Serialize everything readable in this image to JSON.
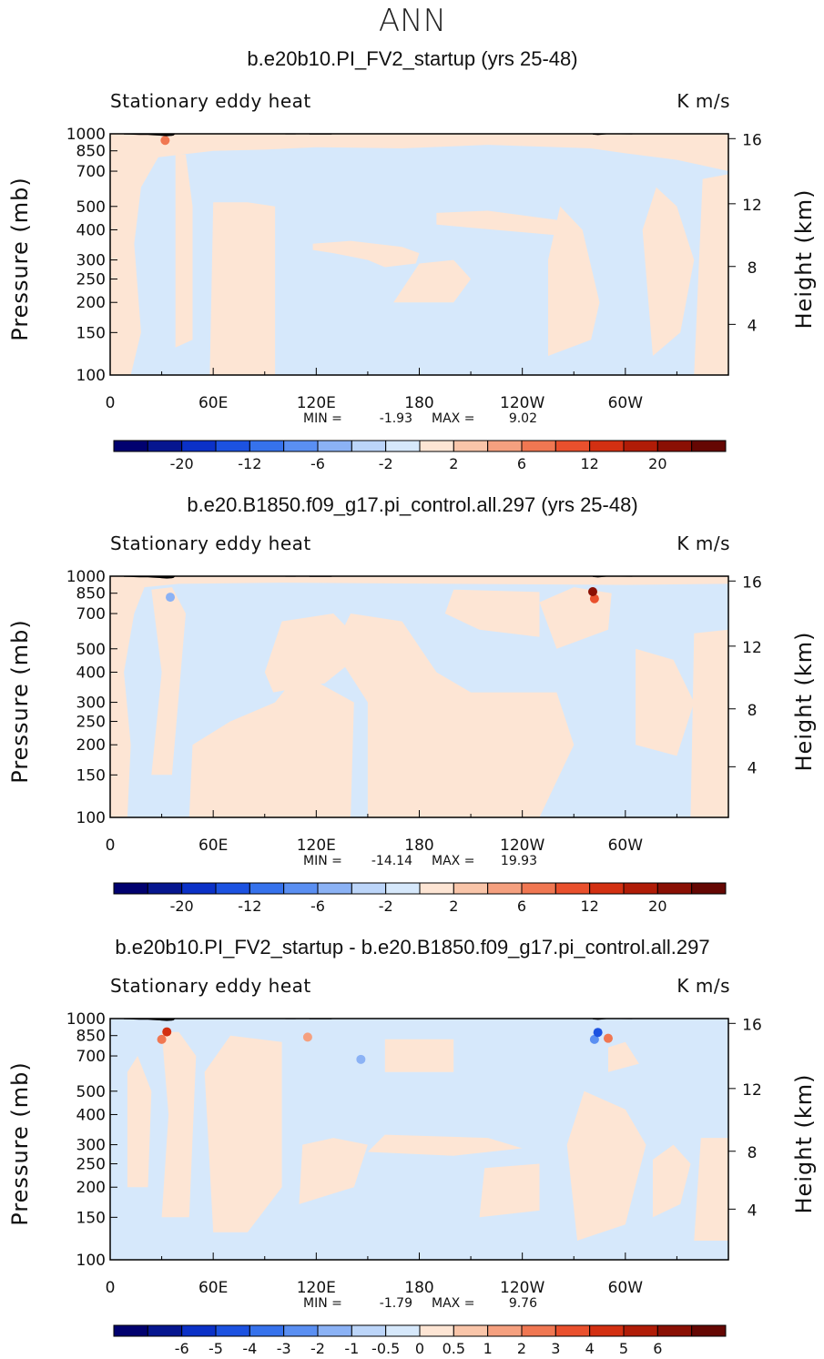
{
  "figure": {
    "title": "ANN"
  },
  "colors": {
    "neg_fill": "#d6e8fb",
    "pos_fill": "#fde5d4",
    "topography": "#000000",
    "palette": [
      "#01016f",
      "#06168f",
      "#0b31c7",
      "#1c52e1",
      "#3672ec",
      "#5a8ff2",
      "#8bb2f5",
      "#bcd5f9",
      "#d6e8fb",
      "#fde5d4",
      "#f9c5a9",
      "#f5a07f",
      "#f07752",
      "#e9502d",
      "#d33012",
      "#b01c07",
      "#8a1004",
      "#650703"
    ]
  },
  "chart_data": [
    {
      "type": "heatmap",
      "title": "b.e20b10.PI_FV2_startup (yrs 25-48)",
      "left_subtitle": "Stationary eddy heat",
      "right_subtitle": "K m/s",
      "ylabel": "Pressure (mb)",
      "y2label": "Height (km)",
      "x_ticks": [
        "0",
        "60E",
        "120E",
        "180",
        "120W",
        "60W"
      ],
      "y_ticks": [
        "100",
        "150",
        "200",
        "250",
        "300",
        "400",
        "500",
        "700",
        "850",
        "1000"
      ],
      "y2_ticks": [
        "16",
        "12",
        "8",
        "4"
      ],
      "min_label": "MIN =",
      "min_value": "-1.93",
      "max_label": "MAX =",
      "max_value": "9.02",
      "colorbar_labels": [
        "-20",
        "-12",
        "-6",
        "-2",
        "2",
        "6",
        "12",
        "20"
      ],
      "xlim": [
        0,
        360
      ],
      "ylim": [
        1000,
        100
      ]
    },
    {
      "type": "heatmap",
      "title": "b.e20.B1850.f09_g17.pi_control.all.297 (yrs 25-48)",
      "left_subtitle": "Stationary eddy heat",
      "right_subtitle": "K m/s",
      "ylabel": "Pressure (mb)",
      "y2label": "Height (km)",
      "x_ticks": [
        "0",
        "60E",
        "120E",
        "180",
        "120W",
        "60W"
      ],
      "y_ticks": [
        "100",
        "150",
        "200",
        "250",
        "300",
        "400",
        "500",
        "700",
        "850",
        "1000"
      ],
      "y2_ticks": [
        "16",
        "12",
        "8",
        "4"
      ],
      "min_label": "MIN =",
      "min_value": "-14.14",
      "max_label": "MAX =",
      "max_value": "19.93",
      "colorbar_labels": [
        "-20",
        "-12",
        "-6",
        "-2",
        "2",
        "6",
        "12",
        "20"
      ],
      "xlim": [
        0,
        360
      ],
      "ylim": [
        1000,
        100
      ]
    },
    {
      "type": "heatmap",
      "title": "b.e20b10.PI_FV2_startup - b.e20.B1850.f09_g17.pi_control.all.297",
      "left_subtitle": "Stationary eddy heat",
      "right_subtitle": "K m/s",
      "ylabel": "Pressure (mb)",
      "y2label": "Height (km)",
      "x_ticks": [
        "0",
        "60E",
        "120E",
        "180",
        "120W",
        "60W"
      ],
      "y_ticks": [
        "100",
        "150",
        "200",
        "250",
        "300",
        "400",
        "500",
        "700",
        "850",
        "1000"
      ],
      "y2_ticks": [
        "16",
        "12",
        "8",
        "4"
      ],
      "min_label": "MIN =",
      "min_value": "-1.79",
      "max_label": "MAX =",
      "max_value": "9.76",
      "colorbar_labels": [
        "-6",
        "-5",
        "-4",
        "-3",
        "-2",
        "-1",
        "-0.5",
        "0",
        "0.5",
        "1",
        "2",
        "3",
        "4",
        "5",
        "6"
      ],
      "xlim": [
        0,
        360
      ],
      "ylim": [
        1000,
        100
      ]
    }
  ]
}
